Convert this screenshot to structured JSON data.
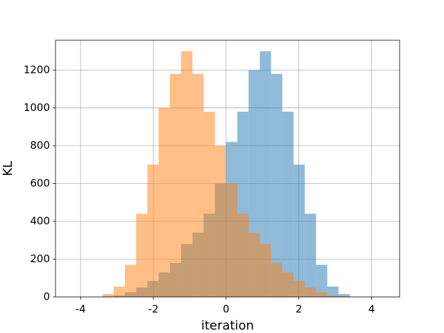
{
  "chart_data": {
    "type": "histogram",
    "xlabel": "iteration",
    "ylabel": "KL",
    "bins": [
      -3.4,
      -3.091,
      -2.782,
      -2.473,
      -2.164,
      -1.855,
      -1.545,
      -1.236,
      -0.927,
      -0.618,
      -0.309,
      0,
      0.309,
      0.618,
      0.927,
      1.236,
      1.545,
      1.855,
      2.164,
      2.473,
      2.782,
      3.091,
      3.4
    ],
    "series": [
      {
        "color": "#1f77b4",
        "values": [
          3,
          8,
          25,
          50,
          85,
          130,
          180,
          280,
          340,
          440,
          600,
          820,
          980,
          1200,
          1300,
          1180,
          980,
          700,
          440,
          170,
          55,
          15
        ]
      },
      {
        "color": "#ff7f0e",
        "values": [
          15,
          55,
          170,
          440,
          700,
          1000,
          1180,
          1300,
          1180,
          980,
          800,
          600,
          440,
          340,
          280,
          180,
          130,
          85,
          50,
          25,
          8,
          3
        ]
      }
    ],
    "opacity": 0.5,
    "xlim": [
      -4.69,
      4.77
    ],
    "ylim": [
      0,
      1358
    ],
    "xticks": [
      -4,
      -2,
      0,
      2,
      4
    ],
    "yticks": [
      0,
      200,
      400,
      600,
      800,
      1000,
      1200
    ],
    "grid": true
  }
}
